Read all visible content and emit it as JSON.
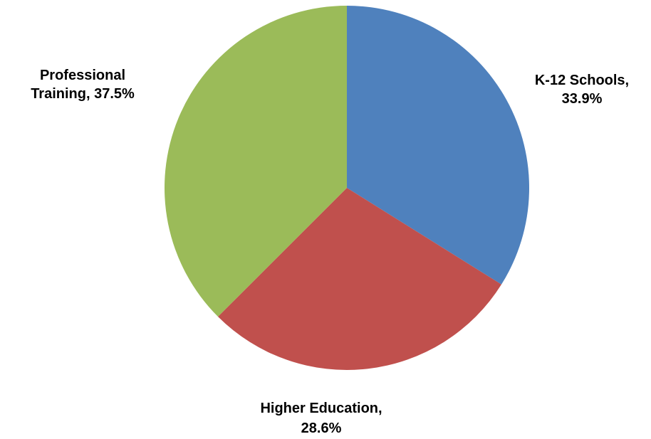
{
  "chart_data": {
    "type": "pie",
    "title": "",
    "slices": [
      {
        "name": "K-12 Schools",
        "value": 33.9,
        "color": "#4F81BD",
        "label_lines": [
          "K-12 Schools,",
          "33.9%"
        ]
      },
      {
        "name": "Higher Education",
        "value": 28.6,
        "color": "#C0504D",
        "label_lines": [
          "Higher Education,",
          "28.6%"
        ]
      },
      {
        "name": "Professional Training",
        "value": 37.5,
        "color": "#9BBB59",
        "label_lines": [
          "Professional",
          "Training, 37.5%"
        ]
      }
    ],
    "start_angle": "12 o'clock",
    "direction": "clockwise",
    "legend": "none",
    "data_labels": "outside end"
  }
}
